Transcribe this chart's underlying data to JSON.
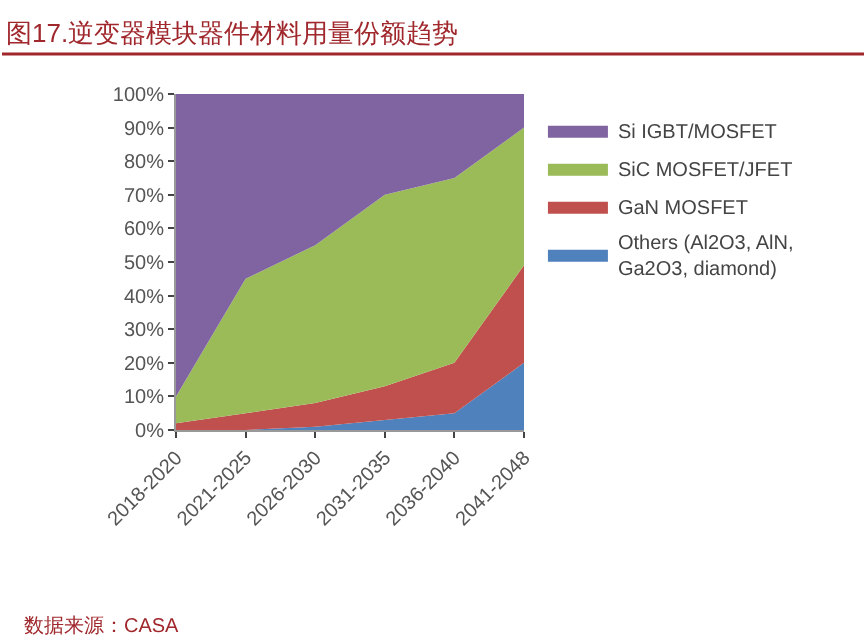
{
  "chart_data": {
    "type": "area",
    "stacked": true,
    "title": "图17.逆变器模块器件材料用量份额趋势",
    "categories": [
      "2018-2020",
      "2021-2025",
      "2026-2030",
      "2031-2035",
      "2036-2040",
      "2041-2048"
    ],
    "series": [
      {
        "name": "Others (Al2O3, AlN, Ga2O3, diamond)",
        "color": "#4f81bd",
        "values": [
          0,
          0,
          1,
          3,
          5,
          20
        ]
      },
      {
        "name": "GaN MOSFET",
        "color": "#c0504d",
        "values": [
          2,
          5,
          7,
          10,
          15,
          29
        ]
      },
      {
        "name": "SiC MOSFET/JFET",
        "color": "#9bbb59",
        "values": [
          8,
          40,
          47,
          57,
          55,
          41
        ]
      },
      {
        "name": "Si IGBT/MOSFET",
        "color": "#8064a2",
        "values": [
          90,
          55,
          45,
          30,
          25,
          10
        ]
      }
    ],
    "ylim": [
      0,
      100
    ],
    "yticks": [
      {
        "value": 0,
        "label": "0%"
      },
      {
        "value": 10,
        "label": "10%"
      },
      {
        "value": 20,
        "label": "20%"
      },
      {
        "value": 30,
        "label": "30%"
      },
      {
        "value": 40,
        "label": "40%"
      },
      {
        "value": 50,
        "label": "50%"
      },
      {
        "value": 60,
        "label": "60%"
      },
      {
        "value": 70,
        "label": "70%"
      },
      {
        "value": 80,
        "label": "80%"
      },
      {
        "value": 90,
        "label": "90%"
      },
      {
        "value": 100,
        "label": "100%"
      }
    ],
    "legend": "right",
    "annotations": [
      "数据来源：CASA"
    ]
  }
}
